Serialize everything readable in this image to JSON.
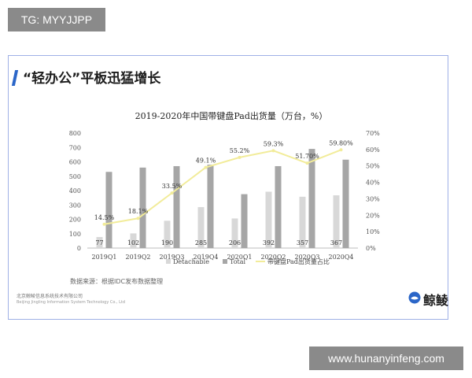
{
  "overlay": {
    "top_badge": "TG: MYYJJPP",
    "bottom_badge": "www.hunanyinfeng.com"
  },
  "slide": {
    "heading": "“轻办公”平板迅猛增长",
    "source_note": "数据来源：根据IDC发布数据整理",
    "company_cn": "北京鲸鲮信息系统技术有限公司",
    "company_en": "Beijing Jingling Information System Technology Co., Ltd",
    "logo_text": "鲸鲮",
    "accent_color": "#2b66c8"
  },
  "chart_data": {
    "type": "bar",
    "title": "2019-2020年中国带键盘Pad出货量（万台，%）",
    "categories": [
      "2019Q1",
      "2019Q2",
      "2019Q3",
      "2019Q4",
      "2020Q1",
      "2020Q2",
      "2020Q3",
      "2020Q4"
    ],
    "series": [
      {
        "name": "Detachable",
        "kind": "bar",
        "color": "#d8d8d8",
        "values": [
          77,
          102,
          190,
          285,
          206,
          392,
          357,
          367
        ],
        "labels": [
          "77",
          "102",
          "190",
          "285",
          "206",
          "392",
          "357",
          "367"
        ]
      },
      {
        "name": "Total",
        "kind": "bar",
        "color": "#a6a6a6",
        "values": [
          530,
          560,
          570,
          580,
          375,
          570,
          690,
          615
        ]
      },
      {
        "name": "带键盘Pad出货量占比",
        "kind": "line",
        "axis": "right",
        "color": "#f2ec9a",
        "values": [
          14.5,
          18.1,
          33.5,
          49.1,
          55.2,
          59.3,
          51.7,
          59.8
        ],
        "labels": [
          "14.5%",
          "18.1%",
          "33.5%",
          "49.1%",
          "55.2%",
          "59.3%",
          "51.70%",
          "59.80%"
        ]
      }
    ],
    "ylim": [
      0,
      800
    ],
    "y_ticks": [
      "0",
      "100",
      "200",
      "300",
      "400",
      "500",
      "600",
      "700",
      "800"
    ],
    "y2lim": [
      0,
      70
    ],
    "y2_ticks": [
      "0%",
      "10%",
      "20%",
      "30%",
      "40%",
      "50%",
      "60%",
      "70%"
    ],
    "legend_position": "bottom",
    "grid": false
  }
}
